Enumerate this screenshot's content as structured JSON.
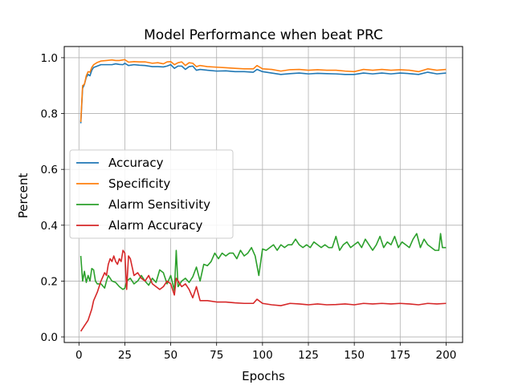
{
  "chart_data": {
    "type": "line",
    "title": "Model Performance when beat PRC",
    "xlabel": "Epochs",
    "ylabel": "Percent",
    "xlim": [
      -8,
      209
    ],
    "ylim": [
      -0.02,
      1.04
    ],
    "xticks": [
      0,
      25,
      50,
      75,
      100,
      125,
      150,
      175,
      200
    ],
    "yticks": [
      0.0,
      0.2,
      0.4,
      0.6,
      0.8,
      1.0
    ],
    "grid": true,
    "legend_position": "center-left",
    "series": [
      {
        "name": "Accuracy",
        "color": "#1f77b4",
        "points": [
          [
            1,
            0.765
          ],
          [
            2,
            0.89
          ],
          [
            3,
            0.905
          ],
          [
            4,
            0.93
          ],
          [
            5,
            0.94
          ],
          [
            6,
            0.935
          ],
          [
            7,
            0.955
          ],
          [
            8,
            0.965
          ],
          [
            10,
            0.97
          ],
          [
            12,
            0.975
          ],
          [
            15,
            0.975
          ],
          [
            18,
            0.975
          ],
          [
            20,
            0.978
          ],
          [
            22,
            0.976
          ],
          [
            24,
            0.975
          ],
          [
            25,
            0.98
          ],
          [
            27,
            0.972
          ],
          [
            30,
            0.975
          ],
          [
            33,
            0.973
          ],
          [
            36,
            0.972
          ],
          [
            40,
            0.968
          ],
          [
            43,
            0.968
          ],
          [
            46,
            0.967
          ],
          [
            48,
            0.97
          ],
          [
            50,
            0.975
          ],
          [
            52,
            0.962
          ],
          [
            54,
            0.97
          ],
          [
            56,
            0.97
          ],
          [
            58,
            0.958
          ],
          [
            60,
            0.968
          ],
          [
            62,
            0.97
          ],
          [
            64,
            0.955
          ],
          [
            66,
            0.958
          ],
          [
            70,
            0.955
          ],
          [
            75,
            0.952
          ],
          [
            80,
            0.953
          ],
          [
            85,
            0.95
          ],
          [
            90,
            0.95
          ],
          [
            95,
            0.948
          ],
          [
            97,
            0.958
          ],
          [
            100,
            0.95
          ],
          [
            105,
            0.945
          ],
          [
            110,
            0.94
          ],
          [
            115,
            0.943
          ],
          [
            120,
            0.945
          ],
          [
            125,
            0.942
          ],
          [
            130,
            0.944
          ],
          [
            135,
            0.943
          ],
          [
            140,
            0.942
          ],
          [
            145,
            0.94
          ],
          [
            150,
            0.94
          ],
          [
            155,
            0.945
          ],
          [
            160,
            0.942
          ],
          [
            165,
            0.945
          ],
          [
            170,
            0.942
          ],
          [
            175,
            0.945
          ],
          [
            180,
            0.943
          ],
          [
            185,
            0.94
          ],
          [
            190,
            0.948
          ],
          [
            195,
            0.942
          ],
          [
            200,
            0.945
          ]
        ]
      },
      {
        "name": "Specificity",
        "color": "#ff7f0e",
        "points": [
          [
            1,
            0.77
          ],
          [
            2,
            0.9
          ],
          [
            3,
            0.905
          ],
          [
            4,
            0.935
          ],
          [
            5,
            0.95
          ],
          [
            6,
            0.948
          ],
          [
            7,
            0.965
          ],
          [
            8,
            0.975
          ],
          [
            10,
            0.983
          ],
          [
            12,
            0.988
          ],
          [
            15,
            0.99
          ],
          [
            18,
            0.992
          ],
          [
            20,
            0.99
          ],
          [
            22,
            0.99
          ],
          [
            24,
            0.992
          ],
          [
            25,
            0.993
          ],
          [
            27,
            0.984
          ],
          [
            30,
            0.986
          ],
          [
            33,
            0.985
          ],
          [
            36,
            0.985
          ],
          [
            40,
            0.98
          ],
          [
            43,
            0.982
          ],
          [
            46,
            0.978
          ],
          [
            48,
            0.985
          ],
          [
            50,
            0.986
          ],
          [
            52,
            0.975
          ],
          [
            54,
            0.982
          ],
          [
            56,
            0.985
          ],
          [
            58,
            0.972
          ],
          [
            60,
            0.982
          ],
          [
            62,
            0.98
          ],
          [
            64,
            0.968
          ],
          [
            66,
            0.972
          ],
          [
            70,
            0.968
          ],
          [
            75,
            0.966
          ],
          [
            80,
            0.964
          ],
          [
            85,
            0.962
          ],
          [
            90,
            0.96
          ],
          [
            95,
            0.96
          ],
          [
            97,
            0.972
          ],
          [
            100,
            0.96
          ],
          [
            105,
            0.958
          ],
          [
            110,
            0.952
          ],
          [
            115,
            0.957
          ],
          [
            120,
            0.958
          ],
          [
            125,
            0.955
          ],
          [
            130,
            0.957
          ],
          [
            135,
            0.955
          ],
          [
            140,
            0.955
          ],
          [
            145,
            0.952
          ],
          [
            150,
            0.95
          ],
          [
            155,
            0.958
          ],
          [
            160,
            0.955
          ],
          [
            165,
            0.958
          ],
          [
            170,
            0.955
          ],
          [
            175,
            0.957
          ],
          [
            180,
            0.955
          ],
          [
            185,
            0.95
          ],
          [
            190,
            0.96
          ],
          [
            195,
            0.955
          ],
          [
            200,
            0.958
          ]
        ]
      },
      {
        "name": "Alarm Sensitivity",
        "color": "#2ca02c",
        "points": [
          [
            1,
            0.29
          ],
          [
            2,
            0.2
          ],
          [
            3,
            0.235
          ],
          [
            4,
            0.195
          ],
          [
            5,
            0.22
          ],
          [
            6,
            0.2
          ],
          [
            7,
            0.245
          ],
          [
            8,
            0.24
          ],
          [
            9,
            0.2
          ],
          [
            10,
            0.19
          ],
          [
            12,
            0.19
          ],
          [
            14,
            0.175
          ],
          [
            15,
            0.2
          ],
          [
            16,
            0.22
          ],
          [
            18,
            0.2
          ],
          [
            20,
            0.195
          ],
          [
            22,
            0.18
          ],
          [
            24,
            0.17
          ],
          [
            25,
            0.175
          ],
          [
            26,
            0.2
          ],
          [
            28,
            0.21
          ],
          [
            30,
            0.19
          ],
          [
            32,
            0.2
          ],
          [
            34,
            0.22
          ],
          [
            36,
            0.2
          ],
          [
            38,
            0.185
          ],
          [
            40,
            0.21
          ],
          [
            42,
            0.195
          ],
          [
            44,
            0.24
          ],
          [
            46,
            0.23
          ],
          [
            48,
            0.19
          ],
          [
            50,
            0.22
          ],
          [
            52,
            0.165
          ],
          [
            53,
            0.31
          ],
          [
            54,
            0.18
          ],
          [
            56,
            0.2
          ],
          [
            58,
            0.21
          ],
          [
            60,
            0.195
          ],
          [
            62,
            0.215
          ],
          [
            64,
            0.25
          ],
          [
            66,
            0.2
          ],
          [
            68,
            0.26
          ],
          [
            70,
            0.255
          ],
          [
            72,
            0.27
          ],
          [
            74,
            0.3
          ],
          [
            76,
            0.28
          ],
          [
            78,
            0.3
          ],
          [
            80,
            0.29
          ],
          [
            82,
            0.3
          ],
          [
            84,
            0.3
          ],
          [
            86,
            0.28
          ],
          [
            88,
            0.31
          ],
          [
            90,
            0.29
          ],
          [
            92,
            0.3
          ],
          [
            94,
            0.32
          ],
          [
            96,
            0.29
          ],
          [
            98,
            0.22
          ],
          [
            100,
            0.315
          ],
          [
            102,
            0.31
          ],
          [
            104,
            0.32
          ],
          [
            106,
            0.33
          ],
          [
            108,
            0.31
          ],
          [
            110,
            0.33
          ],
          [
            112,
            0.32
          ],
          [
            114,
            0.33
          ],
          [
            116,
            0.33
          ],
          [
            118,
            0.35
          ],
          [
            120,
            0.33
          ],
          [
            122,
            0.32
          ],
          [
            124,
            0.33
          ],
          [
            126,
            0.32
          ],
          [
            128,
            0.34
          ],
          [
            130,
            0.33
          ],
          [
            132,
            0.32
          ],
          [
            134,
            0.33
          ],
          [
            136,
            0.32
          ],
          [
            138,
            0.32
          ],
          [
            140,
            0.36
          ],
          [
            142,
            0.31
          ],
          [
            144,
            0.33
          ],
          [
            146,
            0.34
          ],
          [
            148,
            0.32
          ],
          [
            150,
            0.33
          ],
          [
            152,
            0.34
          ],
          [
            154,
            0.32
          ],
          [
            156,
            0.35
          ],
          [
            158,
            0.33
          ],
          [
            160,
            0.31
          ],
          [
            162,
            0.33
          ],
          [
            164,
            0.36
          ],
          [
            166,
            0.32
          ],
          [
            168,
            0.34
          ],
          [
            170,
            0.33
          ],
          [
            172,
            0.36
          ],
          [
            174,
            0.32
          ],
          [
            176,
            0.34
          ],
          [
            178,
            0.33
          ],
          [
            180,
            0.32
          ],
          [
            182,
            0.35
          ],
          [
            184,
            0.37
          ],
          [
            186,
            0.32
          ],
          [
            188,
            0.35
          ],
          [
            190,
            0.33
          ],
          [
            192,
            0.32
          ],
          [
            194,
            0.31
          ],
          [
            196,
            0.31
          ],
          [
            197,
            0.37
          ],
          [
            198,
            0.32
          ],
          [
            200,
            0.32
          ]
        ]
      },
      {
        "name": "Alarm Accuracy",
        "color": "#d62728",
        "points": [
          [
            1,
            0.02
          ],
          [
            2,
            0.03
          ],
          [
            3,
            0.04
          ],
          [
            4,
            0.05
          ],
          [
            5,
            0.06
          ],
          [
            6,
            0.08
          ],
          [
            7,
            0.1
          ],
          [
            8,
            0.13
          ],
          [
            10,
            0.16
          ],
          [
            12,
            0.2
          ],
          [
            14,
            0.23
          ],
          [
            15,
            0.22
          ],
          [
            16,
            0.26
          ],
          [
            17,
            0.28
          ],
          [
            18,
            0.27
          ],
          [
            19,
            0.29
          ],
          [
            20,
            0.27
          ],
          [
            21,
            0.26
          ],
          [
            22,
            0.28
          ],
          [
            23,
            0.27
          ],
          [
            24,
            0.31
          ],
          [
            25,
            0.3
          ],
          [
            26,
            0.17
          ],
          [
            27,
            0.29
          ],
          [
            28,
            0.28
          ],
          [
            29,
            0.25
          ],
          [
            30,
            0.22
          ],
          [
            32,
            0.23
          ],
          [
            34,
            0.21
          ],
          [
            36,
            0.2
          ],
          [
            38,
            0.22
          ],
          [
            40,
            0.19
          ],
          [
            42,
            0.18
          ],
          [
            44,
            0.17
          ],
          [
            46,
            0.18
          ],
          [
            48,
            0.2
          ],
          [
            50,
            0.19
          ],
          [
            52,
            0.15
          ],
          [
            53,
            0.21
          ],
          [
            54,
            0.2
          ],
          [
            56,
            0.18
          ],
          [
            58,
            0.19
          ],
          [
            60,
            0.17
          ],
          [
            62,
            0.14
          ],
          [
            64,
            0.18
          ],
          [
            66,
            0.13
          ],
          [
            70,
            0.13
          ],
          [
            75,
            0.125
          ],
          [
            80,
            0.125
          ],
          [
            85,
            0.122
          ],
          [
            90,
            0.12
          ],
          [
            95,
            0.12
          ],
          [
            97,
            0.135
          ],
          [
            100,
            0.12
          ],
          [
            105,
            0.115
          ],
          [
            110,
            0.112
          ],
          [
            115,
            0.12
          ],
          [
            120,
            0.118
          ],
          [
            125,
            0.115
          ],
          [
            130,
            0.118
          ],
          [
            135,
            0.115
          ],
          [
            140,
            0.116
          ],
          [
            145,
            0.118
          ],
          [
            150,
            0.115
          ],
          [
            155,
            0.12
          ],
          [
            160,
            0.118
          ],
          [
            165,
            0.12
          ],
          [
            170,
            0.118
          ],
          [
            175,
            0.12
          ],
          [
            180,
            0.118
          ],
          [
            185,
            0.115
          ],
          [
            190,
            0.12
          ],
          [
            195,
            0.118
          ],
          [
            200,
            0.12
          ]
        ]
      }
    ]
  }
}
